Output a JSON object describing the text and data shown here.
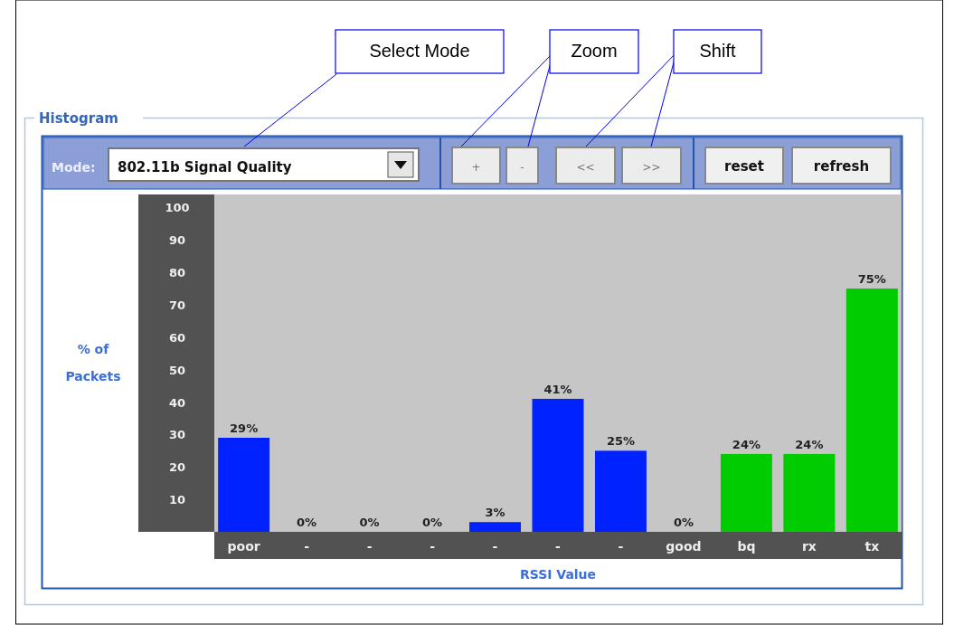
{
  "chart_data": {
    "type": "bar",
    "title": "Histogram",
    "xlabel": "RSSI Value",
    "ylabel": "% of Packets",
    "categories": [
      "poor",
      "-",
      "-",
      "-",
      "-",
      "-",
      "-",
      "good",
      "bq",
      "rx",
      "tx"
    ],
    "values": [
      29,
      0,
      0,
      0,
      3,
      41,
      25,
      0,
      24,
      24,
      75
    ],
    "colors": [
      "#0022ff",
      "#0022ff",
      "#0022ff",
      "#0022ff",
      "#0022ff",
      "#0022ff",
      "#0022ff",
      "#0022ff",
      "#00cc00",
      "#00cc00",
      "#00cc00"
    ],
    "value_labels": [
      "29%",
      "0%",
      "0%",
      "0%",
      "3%",
      "41%",
      "25%",
      "0%",
      "24%",
      "24%",
      "75%"
    ],
    "ylim": [
      0,
      104
    ],
    "yticks": [
      10,
      20,
      30,
      40,
      50,
      60,
      70,
      80,
      90,
      100
    ],
    "grid": false,
    "annotations": [
      "Select Mode",
      "Zoom",
      "Shift",
      "Mode:",
      "802.11b Signal Quality",
      "+",
      "-",
      "<<",
      ">>",
      "reset",
      "refresh"
    ]
  }
}
